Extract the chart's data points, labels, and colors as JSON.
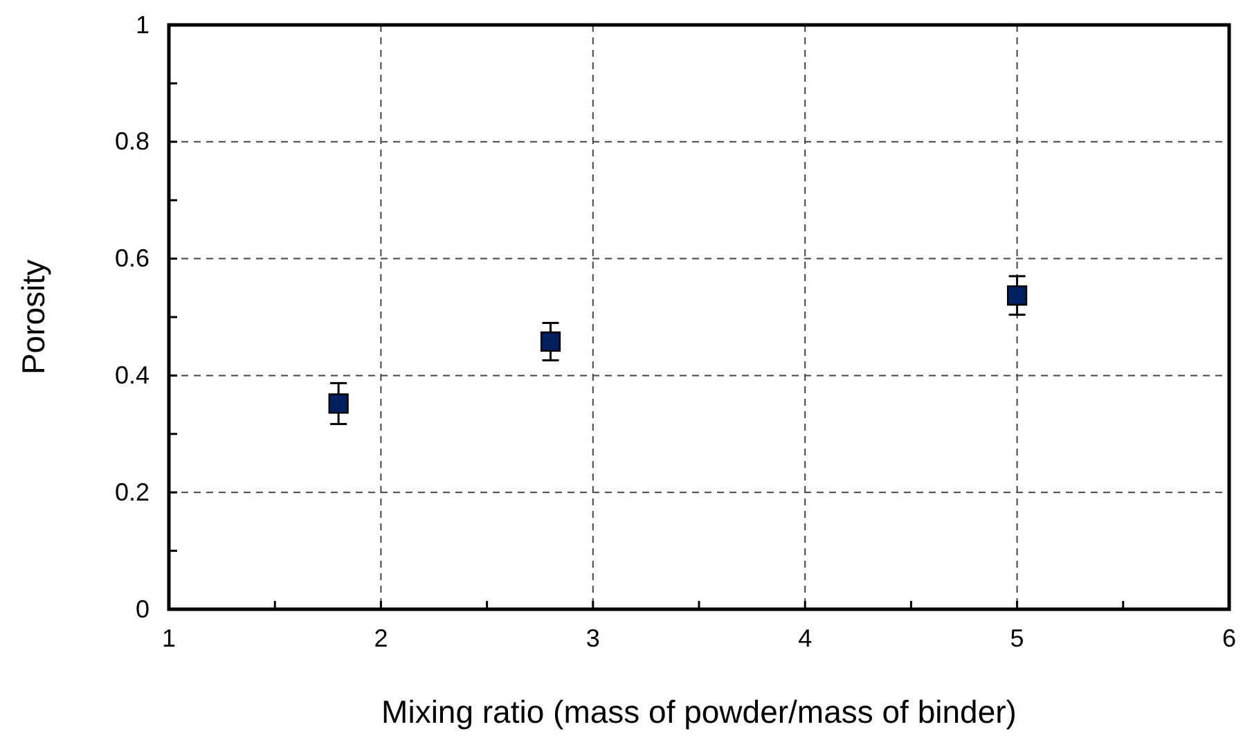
{
  "chart_data": {
    "type": "scatter",
    "xlabel": "Mixing ratio (mass of powder/mass of binder)",
    "ylabel": "Porosity",
    "x": [
      1.8,
      2.8,
      5
    ],
    "values": [
      0.352,
      0.458,
      0.537
    ],
    "errors": [
      0.035,
      0.032,
      0.033
    ],
    "color": "#002060",
    "marker": "square",
    "grid": true,
    "xlim": [
      1,
      6
    ],
    "xticks": [
      1,
      {
        "value": 1.5,
        "label": null
      },
      2,
      {
        "value": 2.5,
        "label": null
      },
      3,
      {
        "value": 3.5,
        "label": null
      },
      4,
      {
        "value": 4.5,
        "label": null
      },
      5,
      {
        "value": 5.5,
        "label": null
      },
      6
    ],
    "ylim": [
      0,
      1
    ],
    "yticks": [
      0,
      {
        "value": 0.1,
        "label": null
      },
      0.2,
      {
        "value": 0.3,
        "label": null
      },
      0.4,
      {
        "value": 0.5,
        "label": null
      },
      0.6,
      {
        "value": 0.7,
        "label": null
      },
      0.8,
      {
        "value": 0.9,
        "label": null
      },
      1
    ]
  }
}
